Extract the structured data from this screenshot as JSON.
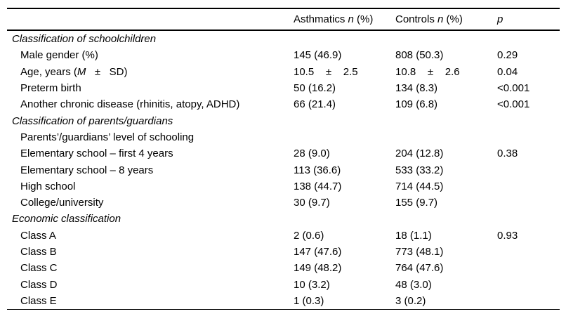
{
  "colors": {
    "text": "#000000",
    "rule": "#000000",
    "background": "#ffffff"
  },
  "table": {
    "columns": [
      {
        "key": "label",
        "segments": []
      },
      {
        "key": "asthmatics",
        "segments": [
          {
            "t": "Asthmatics ",
            "i": false
          },
          {
            "t": "n",
            "i": true
          },
          {
            "t": " (%)",
            "i": false
          }
        ]
      },
      {
        "key": "controls",
        "segments": [
          {
            "t": "Controls ",
            "i": false
          },
          {
            "t": "n",
            "i": true
          },
          {
            "t": " (%)",
            "i": false
          }
        ]
      },
      {
        "key": "p",
        "segments": [
          {
            "t": "p",
            "i": true
          }
        ]
      }
    ],
    "rows": [
      {
        "type": "section",
        "label": [
          {
            "t": "Classification of schoolchildren",
            "i": true
          }
        ],
        "asthmatics": "",
        "controls": "",
        "p": ""
      },
      {
        "type": "item",
        "label": [
          {
            "t": "Male gender (%)",
            "i": false
          }
        ],
        "asthmatics": "145 (46.9)",
        "controls": "808 (50.3)",
        "p": "0.29"
      },
      {
        "type": "item",
        "label": [
          {
            "t": "Age, years (",
            "i": false
          },
          {
            "t": "M",
            "i": true
          },
          {
            "t": "   ±   SD)",
            "i": false
          }
        ],
        "asthmatics": "10.5    ±    2.5",
        "controls": "10.8    ±    2.6",
        "p": "0.04"
      },
      {
        "type": "item",
        "label": [
          {
            "t": "Preterm birth",
            "i": false
          }
        ],
        "asthmatics": "50 (16.2)",
        "controls": "134 (8.3)",
        "p": "<0.001"
      },
      {
        "type": "item",
        "label": [
          {
            "t": "Another chronic disease (rhinitis, atopy, ADHD)",
            "i": false
          }
        ],
        "asthmatics": "66 (21.4)",
        "controls": "109 (6.8)",
        "p": "<0.001"
      },
      {
        "type": "section",
        "label": [
          {
            "t": "Classification of parents/guardians",
            "i": true
          }
        ],
        "asthmatics": "",
        "controls": "",
        "p": ""
      },
      {
        "type": "item",
        "label": [
          {
            "t": "Parents’/guardians’ level of schooling",
            "i": false
          }
        ],
        "asthmatics": "",
        "controls": "",
        "p": ""
      },
      {
        "type": "item",
        "label": [
          {
            "t": "Elementary school – first 4 years",
            "i": false
          }
        ],
        "asthmatics": "28 (9.0)",
        "controls": "204 (12.8)",
        "p": "0.38"
      },
      {
        "type": "item",
        "label": [
          {
            "t": "Elementary school – 8 years",
            "i": false
          }
        ],
        "asthmatics": "113 (36.6)",
        "controls": "533 (33.2)",
        "p": ""
      },
      {
        "type": "item",
        "label": [
          {
            "t": "High school",
            "i": false
          }
        ],
        "asthmatics": "138 (44.7)",
        "controls": "714 (44.5)",
        "p": ""
      },
      {
        "type": "item",
        "label": [
          {
            "t": "College/university",
            "i": false
          }
        ],
        "asthmatics": "30 (9.7)",
        "controls": "155 (9.7)",
        "p": ""
      },
      {
        "type": "section",
        "label": [
          {
            "t": "Economic classification",
            "i": true
          }
        ],
        "asthmatics": "",
        "controls": "",
        "p": ""
      },
      {
        "type": "item",
        "label": [
          {
            "t": "Class A",
            "i": false
          }
        ],
        "asthmatics": "2 (0.6)",
        "controls": "18 (1.1)",
        "p": "0.93"
      },
      {
        "type": "item",
        "label": [
          {
            "t": "Class B",
            "i": false
          }
        ],
        "asthmatics": "147 (47.6)",
        "controls": "773 (48.1)",
        "p": ""
      },
      {
        "type": "item",
        "label": [
          {
            "t": "Class C",
            "i": false
          }
        ],
        "asthmatics": "149 (48.2)",
        "controls": "764 (47.6)",
        "p": ""
      },
      {
        "type": "item",
        "label": [
          {
            "t": "Class D",
            "i": false
          }
        ],
        "asthmatics": "10 (3.2)",
        "controls": "48 (3.0)",
        "p": ""
      },
      {
        "type": "item",
        "label": [
          {
            "t": "Class E",
            "i": false
          }
        ],
        "asthmatics": "1 (0.3)",
        "controls": "3 (0.2)",
        "p": ""
      }
    ]
  }
}
